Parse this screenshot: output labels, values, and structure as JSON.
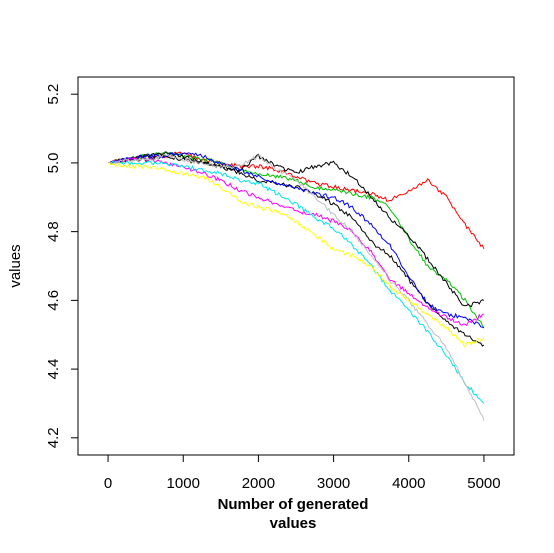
{
  "chart_data": {
    "type": "line",
    "title": "",
    "xlabel": [
      "Number of generated",
      "values"
    ],
    "ylabel": "values",
    "xlim": [
      -400,
      5400
    ],
    "ylim": [
      4.15,
      5.25
    ],
    "xticks": [
      0,
      1000,
      2000,
      3000,
      4000,
      5000
    ],
    "xtick_labels": [
      "0",
      "1000",
      "2000",
      "3000",
      "4000",
      "5000"
    ],
    "yticks": [
      4.2,
      4.4,
      4.6,
      4.8,
      5.0,
      5.2
    ],
    "ytick_labels": [
      "4.2",
      "4.4",
      "4.6",
      "4.8",
      "5.0",
      "5.2"
    ],
    "grid": false,
    "legend": "none",
    "x": [
      0,
      250,
      500,
      750,
      1000,
      1250,
      1500,
      1750,
      2000,
      2250,
      2500,
      2750,
      3000,
      3250,
      3500,
      3750,
      4000,
      4250,
      4500,
      4750,
      5000
    ],
    "series": [
      {
        "color": "#ff0000",
        "values": [
          5.0,
          5.01,
          5.02,
          5.02,
          5.03,
          5.01,
          5.0,
          4.99,
          4.99,
          4.98,
          4.96,
          4.94,
          4.93,
          4.92,
          4.91,
          4.89,
          4.92,
          4.95,
          4.9,
          4.82,
          4.75
        ]
      },
      {
        "color": "#00c000",
        "values": [
          5.0,
          5.01,
          5.02,
          5.03,
          5.02,
          5.01,
          5.0,
          4.98,
          4.97,
          4.96,
          4.95,
          4.93,
          4.92,
          4.91,
          4.9,
          4.87,
          4.78,
          4.7,
          4.66,
          4.6,
          4.52
        ]
      },
      {
        "color": "#000000",
        "values": [
          5.0,
          5.01,
          5.02,
          5.03,
          5.02,
          5.0,
          4.99,
          4.98,
          5.02,
          4.99,
          4.97,
          4.99,
          5.0,
          4.96,
          4.9,
          4.84,
          4.79,
          4.72,
          4.65,
          4.58,
          4.6
        ]
      },
      {
        "color": "#000000",
        "values": [
          5.0,
          5.01,
          5.01,
          5.02,
          5.01,
          5.0,
          4.99,
          4.97,
          4.95,
          4.94,
          4.93,
          4.91,
          4.88,
          4.84,
          4.77,
          4.73,
          4.66,
          4.59,
          4.54,
          4.5,
          4.47
        ]
      },
      {
        "color": "#0000ff",
        "values": [
          5.0,
          5.01,
          5.02,
          5.02,
          5.03,
          5.02,
          5.0,
          4.98,
          4.96,
          4.94,
          4.93,
          4.91,
          4.9,
          4.87,
          4.82,
          4.76,
          4.67,
          4.59,
          4.56,
          4.55,
          4.52
        ]
      },
      {
        "color": "#ff00ff",
        "values": [
          5.0,
          5.01,
          5.01,
          5.0,
          4.99,
          4.97,
          4.95,
          4.92,
          4.9,
          4.88,
          4.86,
          4.85,
          4.83,
          4.8,
          4.74,
          4.66,
          4.62,
          4.58,
          4.55,
          4.53,
          4.56
        ]
      },
      {
        "color": "#00e5ee",
        "values": [
          5.0,
          5.0,
          5.0,
          5.0,
          4.99,
          4.98,
          4.97,
          4.95,
          4.94,
          4.91,
          4.88,
          4.84,
          4.81,
          4.76,
          4.7,
          4.63,
          4.57,
          4.51,
          4.44,
          4.36,
          4.3
        ]
      },
      {
        "color": "#bebebe",
        "values": [
          5.0,
          5.01,
          5.01,
          5.02,
          5.01,
          5.0,
          4.99,
          4.99,
          5.02,
          4.98,
          4.95,
          4.9,
          4.85,
          4.8,
          4.73,
          4.66,
          4.6,
          4.53,
          4.46,
          4.36,
          4.25
        ]
      },
      {
        "color": "#ffff00",
        "values": [
          5.0,
          4.99,
          4.99,
          4.98,
          4.97,
          4.96,
          4.93,
          4.89,
          4.87,
          4.86,
          4.83,
          4.79,
          4.75,
          4.73,
          4.7,
          4.64,
          4.6,
          4.56,
          4.52,
          4.47,
          4.49
        ]
      }
    ]
  }
}
